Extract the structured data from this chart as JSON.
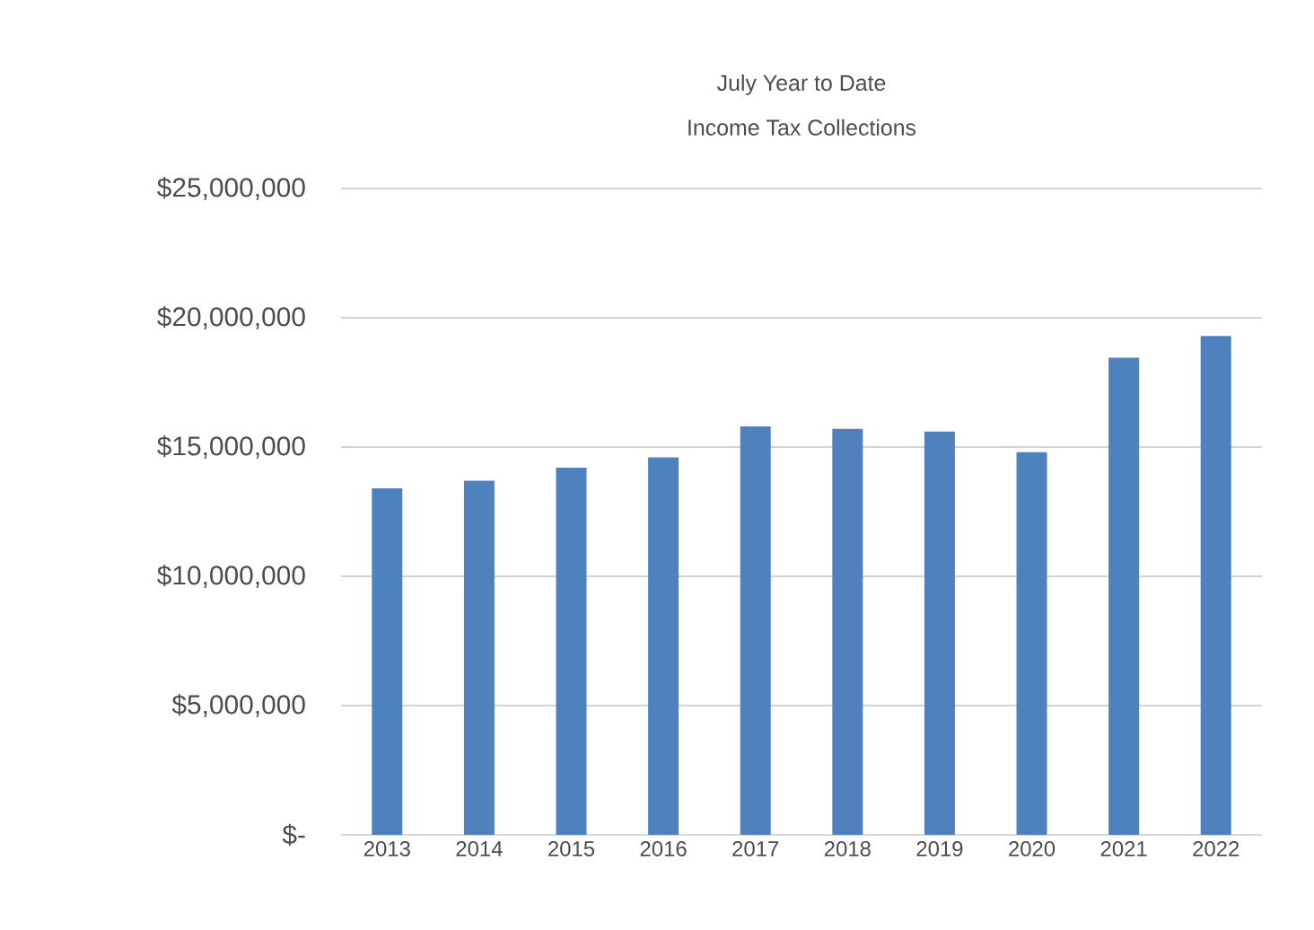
{
  "chart_data": {
    "type": "bar",
    "title": "July Year to Date\nIncome Tax Collections",
    "categories": [
      "2013",
      "2014",
      "2015",
      "2016",
      "2017",
      "2018",
      "2019",
      "2020",
      "2021",
      "2022"
    ],
    "values": [
      13400000,
      13700000,
      14200000,
      14600000,
      15800000,
      15700000,
      15600000,
      14800000,
      18450000,
      19300000
    ],
    "color": "#4f81bd",
    "ylim": [
      0,
      25000000
    ],
    "yticks": [
      {
        "value": 0,
        "label": "$-"
      },
      {
        "value": 5000000,
        "label": "$5,000,000"
      },
      {
        "value": 10000000,
        "label": "$10,000,000"
      },
      {
        "value": 15000000,
        "label": "$15,000,000"
      },
      {
        "value": 20000000,
        "label": "$20,000,000"
      },
      {
        "value": 25000000,
        "label": "$25,000,000"
      }
    ],
    "grid": "y"
  }
}
